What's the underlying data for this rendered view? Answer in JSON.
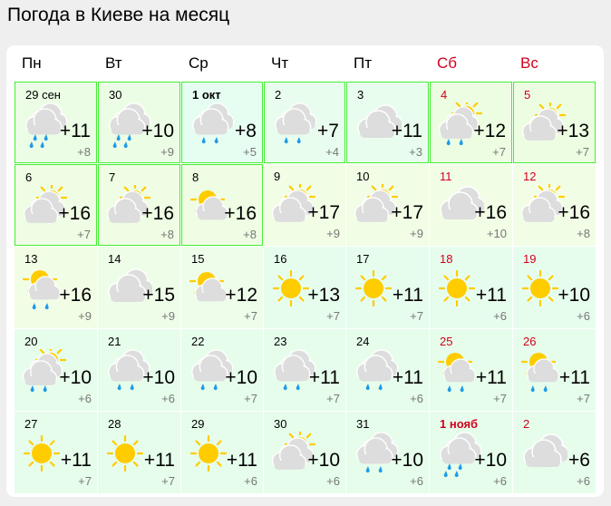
{
  "title": "Погода в Киеве на месяц",
  "weekdays": [
    {
      "label": "Пн",
      "weekend": false
    },
    {
      "label": "Вт",
      "weekend": false
    },
    {
      "label": "Ср",
      "weekend": false
    },
    {
      "label": "Чт",
      "weekend": false
    },
    {
      "label": "Пт",
      "weekend": false
    },
    {
      "label": "Сб",
      "weekend": true
    },
    {
      "label": "Вс",
      "weekend": true
    }
  ],
  "colors": {
    "weekend": "#d0021b",
    "highlight_border": "#44ee33",
    "sun": "#ffcc00",
    "cloud": "#dddddd",
    "rain": "#1e9be8"
  },
  "days": [
    {
      "date": "29 сен",
      "max": "+11",
      "min": "+8",
      "icon": "cloud-heavy-rain",
      "bg": "#ebfde5",
      "highlight": true
    },
    {
      "date": "30",
      "max": "+10",
      "min": "+9",
      "icon": "cloud-heavy-rain",
      "bg": "#ebfde5",
      "highlight": true
    },
    {
      "date": "1 окт",
      "max": "+8",
      "min": "+5",
      "icon": "cloud-rain",
      "bg": "#e6fdf2",
      "highlight": true,
      "bold": true
    },
    {
      "date": "2",
      "max": "+7",
      "min": "+4",
      "icon": "cloud-rain",
      "bg": "#e8fdee",
      "highlight": true
    },
    {
      "date": "3",
      "max": "+11",
      "min": "+3",
      "icon": "cloudy",
      "bg": "#e8fdee",
      "highlight": true
    },
    {
      "date": "4",
      "max": "+12",
      "min": "+7",
      "icon": "partly-cloudy-rain",
      "bg": "#edfde2",
      "highlight": true,
      "weekend": true
    },
    {
      "date": "5",
      "max": "+13",
      "min": "+7",
      "icon": "partly-cloudy",
      "bg": "#edfde2",
      "highlight": true,
      "weekend": true
    },
    {
      "date": "6",
      "max": "+16",
      "min": "+7",
      "icon": "partly-cloudy",
      "bg": "#eefde3",
      "highlight": true
    },
    {
      "date": "7",
      "max": "+16",
      "min": "+8",
      "icon": "partly-cloudy",
      "bg": "#eefde3",
      "highlight": true
    },
    {
      "date": "8",
      "max": "+16",
      "min": "+8",
      "icon": "sun-cloud",
      "bg": "#eefde3",
      "highlight": true
    },
    {
      "date": "9",
      "max": "+17",
      "min": "+9",
      "icon": "partly-cloudy",
      "bg": "#f2fde6"
    },
    {
      "date": "10",
      "max": "+17",
      "min": "+9",
      "icon": "partly-cloudy",
      "bg": "#f2fde6"
    },
    {
      "date": "11",
      "max": "+16",
      "min": "+10",
      "icon": "cloudy",
      "bg": "#f2fde6",
      "weekend": true
    },
    {
      "date": "12",
      "max": "+16",
      "min": "+8",
      "icon": "partly-cloudy",
      "bg": "#f2fde6",
      "weekend": true
    },
    {
      "date": "13",
      "max": "+16",
      "min": "+9",
      "icon": "sun-cloud-rain",
      "bg": "#f2fde6"
    },
    {
      "date": "14",
      "max": "+15",
      "min": "+9",
      "icon": "cloudy",
      "bg": "#eefde8"
    },
    {
      "date": "15",
      "max": "+12",
      "min": "+7",
      "icon": "sun-cloud",
      "bg": "#edfdea"
    },
    {
      "date": "16",
      "max": "+13",
      "min": "+7",
      "icon": "sunny",
      "bg": "#e6fdee"
    },
    {
      "date": "17",
      "max": "+11",
      "min": "+7",
      "icon": "sunny",
      "bg": "#e6fdee"
    },
    {
      "date": "18",
      "max": "+11",
      "min": "+6",
      "icon": "sunny",
      "bg": "#e6fdee",
      "weekend": true
    },
    {
      "date": "19",
      "max": "+10",
      "min": "+6",
      "icon": "sunny",
      "bg": "#e6fdee",
      "weekend": true
    },
    {
      "date": "20",
      "max": "+10",
      "min": "+6",
      "icon": "partly-cloudy-rain",
      "bg": "#e6fdeb"
    },
    {
      "date": "21",
      "max": "+10",
      "min": "+6",
      "icon": "cloud-rain",
      "bg": "#e6fdeb"
    },
    {
      "date": "22",
      "max": "+10",
      "min": "+7",
      "icon": "cloud-rain",
      "bg": "#e6fdeb"
    },
    {
      "date": "23",
      "max": "+11",
      "min": "+7",
      "icon": "cloud-rain",
      "bg": "#e6fdeb"
    },
    {
      "date": "24",
      "max": "+11",
      "min": "+6",
      "icon": "cloud-rain",
      "bg": "#e6fdeb"
    },
    {
      "date": "25",
      "max": "+11",
      "min": "+7",
      "icon": "sun-cloud-rain",
      "bg": "#e6fdeb",
      "weekend": true
    },
    {
      "date": "26",
      "max": "+11",
      "min": "+7",
      "icon": "sun-cloud-rain",
      "bg": "#e6fdeb",
      "weekend": true
    },
    {
      "date": "27",
      "max": "+11",
      "min": "+7",
      "icon": "sunny",
      "bg": "#e6fdeb"
    },
    {
      "date": "28",
      "max": "+11",
      "min": "+7",
      "icon": "sunny",
      "bg": "#e6fdeb"
    },
    {
      "date": "29",
      "max": "+11",
      "min": "+6",
      "icon": "sunny",
      "bg": "#e6fdeb"
    },
    {
      "date": "30",
      "max": "+10",
      "min": "+6",
      "icon": "partly-cloudy",
      "bg": "#e6fdeb"
    },
    {
      "date": "31",
      "max": "+10",
      "min": "+6",
      "icon": "cloud-rain",
      "bg": "#e6fdeb"
    },
    {
      "date": "1 нояб",
      "max": "+10",
      "min": "+6",
      "icon": "cloud-heavy-rain",
      "bg": "#e6fdeb",
      "weekend": true,
      "bold": true
    },
    {
      "date": "2",
      "max": "+6",
      "min": "+6",
      "icon": "cloudy",
      "bg": "#e6fdeb",
      "weekend": true
    }
  ]
}
